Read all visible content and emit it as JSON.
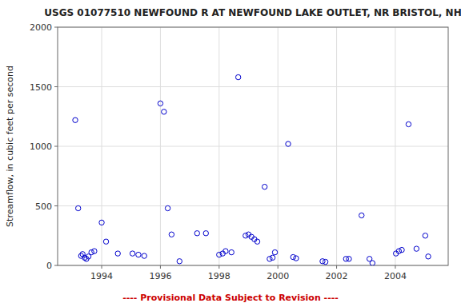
{
  "chart_data": {
    "type": "scatter",
    "title": "USGS 01077510 NEWFOUND R AT NEWFOUND LAKE OUTLET, NR BRISTOL, NH",
    "y_label": "Streamflow, in cubic feet per second",
    "annotations": [
      {
        "text": "---- Provisional Data Subject to Revision ----",
        "color": "#cc0000"
      }
    ],
    "xlim": [
      1992.5,
      2005.8
    ],
    "ylim": [
      0,
      2000
    ],
    "xticks": [
      1994,
      1996,
      1998,
      2000,
      2002,
      2004
    ],
    "yticks": [
      0,
      500,
      1000,
      1500,
      2000
    ],
    "grid": true,
    "color": "#0000CC",
    "marker": "hollow-circle",
    "x": [
      1993.1,
      1993.2,
      1993.3,
      1993.35,
      1993.42,
      1993.48,
      1993.55,
      1993.65,
      1993.75,
      1994.0,
      1994.15,
      1994.55,
      1995.05,
      1995.25,
      1995.45,
      1996.0,
      1996.12,
      1996.25,
      1996.38,
      1996.65,
      1997.25,
      1997.55,
      1998.0,
      1998.12,
      1998.22,
      1998.42,
      1998.65,
      1998.9,
      1999.0,
      1999.1,
      1999.2,
      1999.3,
      1999.55,
      1999.72,
      1999.82,
      1999.9,
      2000.35,
      2000.52,
      2000.62,
      2001.52,
      2001.62,
      2002.32,
      2002.42,
      2002.85,
      2003.12,
      2003.22,
      2004.02,
      2004.12,
      2004.22,
      2004.45,
      2004.72,
      2005.02,
      2005.12
    ],
    "values": [
      1220,
      480,
      80,
      95,
      65,
      55,
      75,
      110,
      120,
      360,
      200,
      100,
      100,
      90,
      80,
      1360,
      1290,
      480,
      260,
      35,
      270,
      270,
      90,
      100,
      120,
      110,
      1580,
      250,
      260,
      240,
      220,
      200,
      660,
      55,
      65,
      110,
      1020,
      70,
      60,
      35,
      30,
      55,
      55,
      420,
      55,
      20,
      100,
      120,
      130,
      1185,
      140,
      250,
      75
    ]
  }
}
